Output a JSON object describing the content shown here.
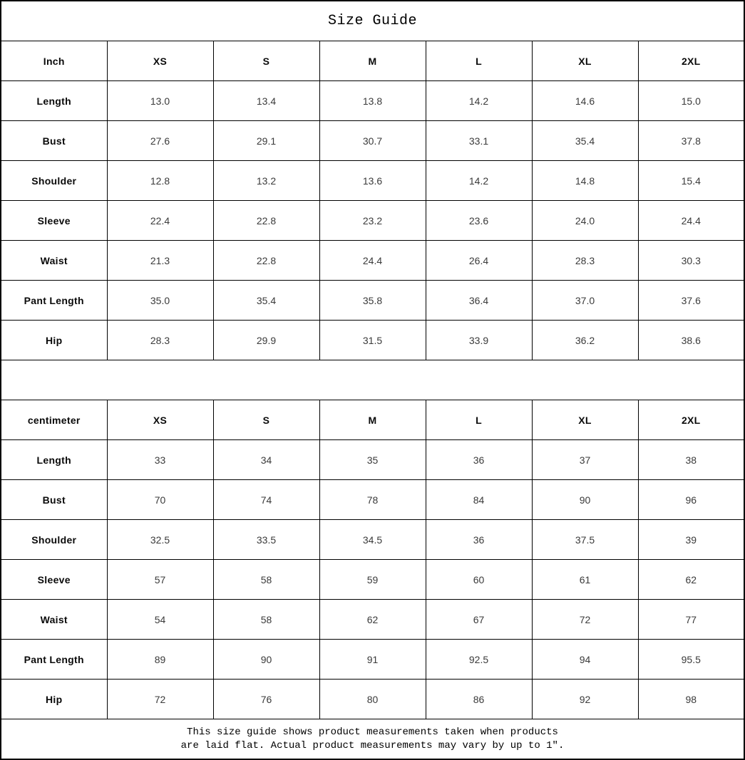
{
  "title": "Size Guide",
  "tables": [
    {
      "unit_label": "Inch",
      "sizes": [
        "XS",
        "S",
        "M",
        "L",
        "XL",
        "2XL"
      ],
      "rows": [
        {
          "label": "Length",
          "values": [
            "13.0",
            "13.4",
            "13.8",
            "14.2",
            "14.6",
            "15.0"
          ]
        },
        {
          "label": "Bust",
          "values": [
            "27.6",
            "29.1",
            "30.7",
            "33.1",
            "35.4",
            "37.8"
          ]
        },
        {
          "label": "Shoulder",
          "values": [
            "12.8",
            "13.2",
            "13.6",
            "14.2",
            "14.8",
            "15.4"
          ]
        },
        {
          "label": "Sleeve",
          "values": [
            "22.4",
            "22.8",
            "23.2",
            "23.6",
            "24.0",
            "24.4"
          ]
        },
        {
          "label": "Waist",
          "values": [
            "21.3",
            "22.8",
            "24.4",
            "26.4",
            "28.3",
            "30.3"
          ]
        },
        {
          "label": "Pant Length",
          "values": [
            "35.0",
            "35.4",
            "35.8",
            "36.4",
            "37.0",
            "37.6"
          ]
        },
        {
          "label": "Hip",
          "values": [
            "28.3",
            "29.9",
            "31.5",
            "33.9",
            "36.2",
            "38.6"
          ]
        }
      ]
    },
    {
      "unit_label": "centimeter",
      "sizes": [
        "XS",
        "S",
        "M",
        "L",
        "XL",
        "2XL"
      ],
      "rows": [
        {
          "label": "Length",
          "values": [
            "33",
            "34",
            "35",
            "36",
            "37",
            "38"
          ]
        },
        {
          "label": "Bust",
          "values": [
            "70",
            "74",
            "78",
            "84",
            "90",
            "96"
          ]
        },
        {
          "label": "Shoulder",
          "values": [
            "32.5",
            "33.5",
            "34.5",
            "36",
            "37.5",
            "39"
          ]
        },
        {
          "label": "Sleeve",
          "values": [
            "57",
            "58",
            "59",
            "60",
            "61",
            "62"
          ]
        },
        {
          "label": "Waist",
          "values": [
            "54",
            "58",
            "62",
            "67",
            "72",
            "77"
          ]
        },
        {
          "label": "Pant Length",
          "values": [
            "89",
            "90",
            "91",
            "92.5",
            "94",
            "95.5"
          ]
        },
        {
          "label": "Hip",
          "values": [
            "72",
            "76",
            "80",
            "86",
            "92",
            "98"
          ]
        }
      ]
    }
  ],
  "footer": {
    "line1": "This size guide shows product measurements taken when products",
    "line2": "are laid flat. Actual product measurements may vary by up to 1″."
  }
}
